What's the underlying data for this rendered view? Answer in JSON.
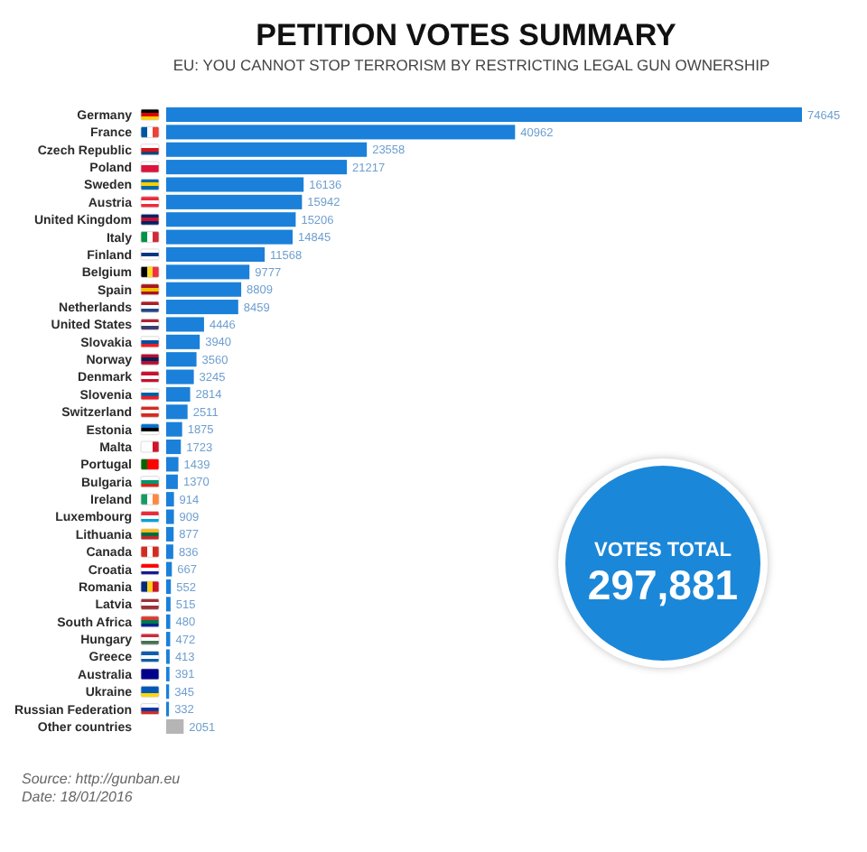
{
  "chart_data": {
    "type": "bar",
    "orientation": "horizontal",
    "title": "PETITION VOTES SUMMARY",
    "subtitle": "EU: YOU CANNOT STOP TERRORISM BY RESTRICTING LEGAL GUN OWNERSHIP",
    "categories": [
      "Germany",
      "France",
      "Czech Republic",
      "Poland",
      "Sweden",
      "Austria",
      "United Kingdom",
      "Italy",
      "Finland",
      "Belgium",
      "Spain",
      "Netherlands",
      "United States",
      "Slovakia",
      "Norway",
      "Denmark",
      "Slovenia",
      "Switzerland",
      "Estonia",
      "Malta",
      "Portugal",
      "Bulgaria",
      "Ireland",
      "Luxembourg",
      "Lithuania",
      "Canada",
      "Croatia",
      "Romania",
      "Latvia",
      "South Africa",
      "Hungary",
      "Greece",
      "Australia",
      "Ukraine",
      "Russian Federation",
      "Other countries"
    ],
    "values": [
      74645,
      40962,
      23558,
      21217,
      16136,
      15942,
      15206,
      14845,
      11568,
      9777,
      8809,
      8459,
      4446,
      3940,
      3560,
      3245,
      2814,
      2511,
      1875,
      1723,
      1439,
      1370,
      914,
      909,
      877,
      836,
      667,
      552,
      515,
      480,
      472,
      413,
      391,
      345,
      332,
      2051
    ],
    "colors": [
      "#1a80d9",
      "#1a80d9",
      "#1a80d9",
      "#1a80d9",
      "#1a80d9",
      "#1a80d9",
      "#1a80d9",
      "#1a80d9",
      "#1a80d9",
      "#1a80d9",
      "#1a80d9",
      "#1a80d9",
      "#1a80d9",
      "#1a80d9",
      "#1a80d9",
      "#1a80d9",
      "#1a80d9",
      "#1a80d9",
      "#1a80d9",
      "#1a80d9",
      "#1a80d9",
      "#1a80d9",
      "#1a80d9",
      "#1a80d9",
      "#1a80d9",
      "#1a80d9",
      "#1a80d9",
      "#1a80d9",
      "#1a80d9",
      "#1a80d9",
      "#1a80d9",
      "#1a80d9",
      "#1a80d9",
      "#1a80d9",
      "#1a80d9",
      "#b5b5b5"
    ],
    "data_labels": true,
    "annotations": [
      "VOTES TOTAL",
      "297,881",
      "Source: http://gunban.eu",
      "Date: 18/01/2016"
    ]
  }
}
